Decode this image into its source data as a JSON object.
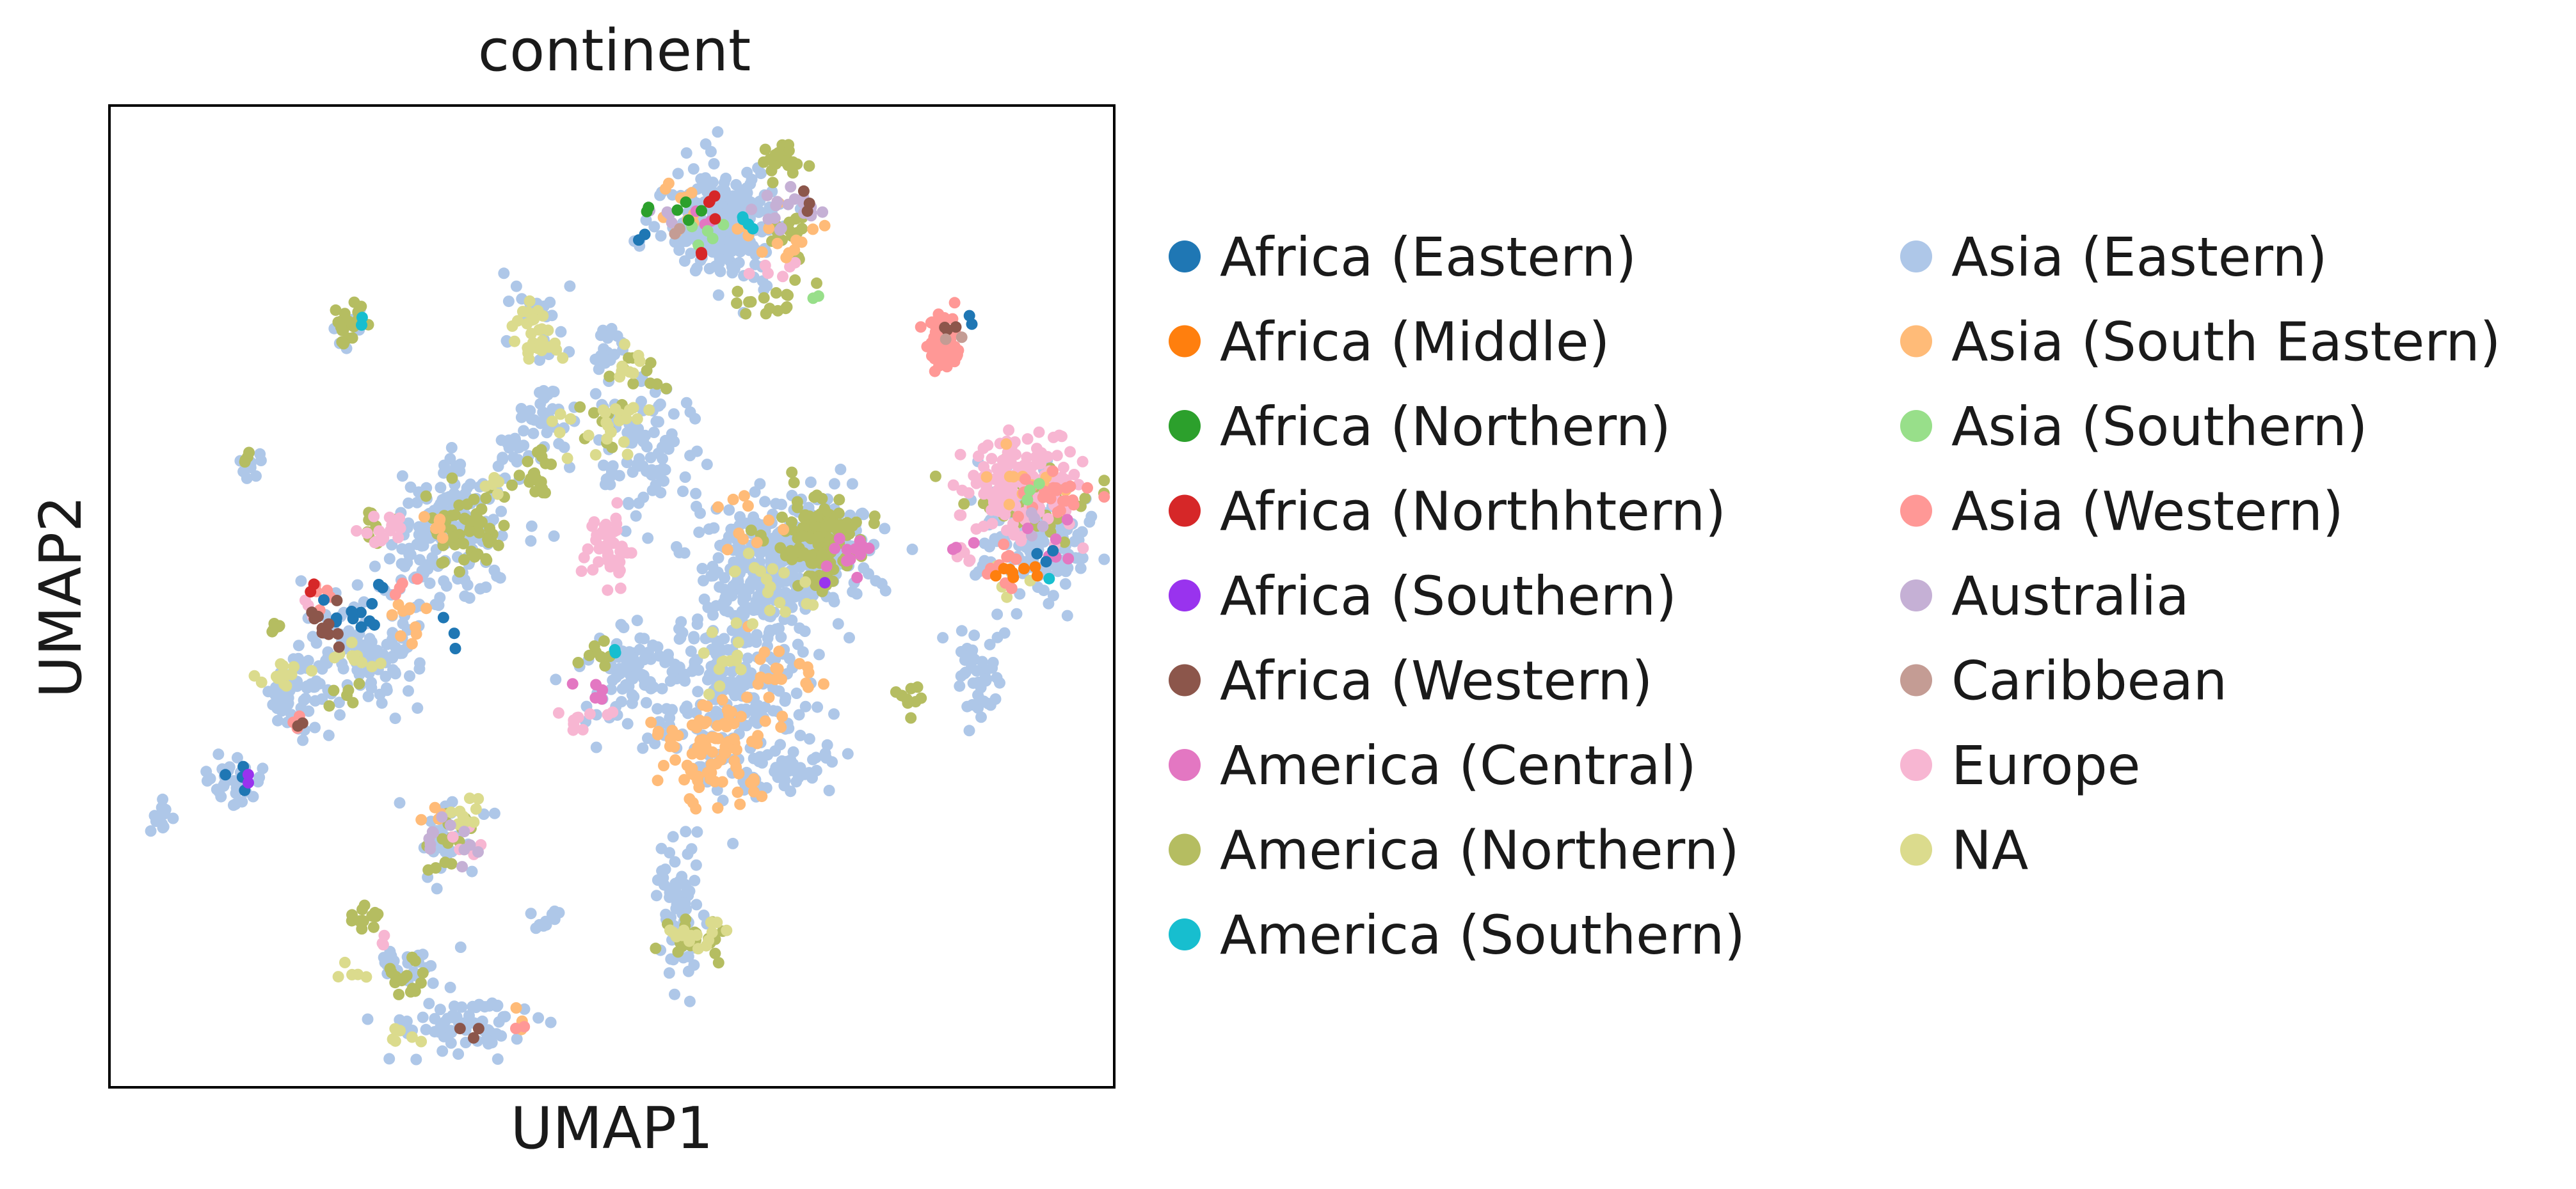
{
  "chart_data": {
    "type": "scatter",
    "title": "continent",
    "xlabel": "UMAP1",
    "ylabel": "UMAP2",
    "xlim": [
      0,
      100
    ],
    "ylim": [
      0,
      100
    ],
    "grid": false,
    "axis_ticks": false,
    "legend_placement": "right, two columns",
    "series": [
      {
        "name": "Africa (Eastern)",
        "color": "#1f77b4",
        "clusters": [
          {
            "x": 25,
            "y": 49,
            "sx": 1.8,
            "sy": 1.5,
            "n": 12
          },
          {
            "x": 13.5,
            "y": 31.5,
            "sx": 0.9,
            "sy": 0.8,
            "n": 4
          },
          {
            "x": 85.5,
            "y": 78.5,
            "sx": 0.5,
            "sy": 0.5,
            "n": 2
          },
          {
            "x": 93.5,
            "y": 54,
            "sx": 0.6,
            "sy": 0.6,
            "n": 3
          },
          {
            "x": 53.5,
            "y": 87,
            "sx": 0.6,
            "sy": 0.6,
            "n": 2
          },
          {
            "x": 34,
            "y": 46.5,
            "sx": 0.8,
            "sy": 0.8,
            "n": 3
          }
        ]
      },
      {
        "name": "Africa (Middle)",
        "color": "#ff7f0e",
        "clusters": [
          {
            "x": 89.5,
            "y": 53,
            "sx": 0.7,
            "sy": 0.6,
            "n": 6
          },
          {
            "x": 92,
            "y": 52.5,
            "sx": 0.4,
            "sy": 0.4,
            "n": 2
          }
        ]
      },
      {
        "name": "Africa (Northern)",
        "color": "#2ca02c",
        "clusters": [
          {
            "x": 57.5,
            "y": 89,
            "sx": 0.8,
            "sy": 0.8,
            "n": 4
          },
          {
            "x": 54,
            "y": 89.5,
            "sx": 0.4,
            "sy": 0.4,
            "n": 2
          }
        ]
      },
      {
        "name": "Africa (Northhtern)",
        "color": "#d62728",
        "clusters": [
          {
            "x": 59.5,
            "y": 89.5,
            "sx": 1,
            "sy": 1,
            "n": 4
          },
          {
            "x": 58.5,
            "y": 84.5,
            "sx": 0.5,
            "sy": 0.5,
            "n": 2
          },
          {
            "x": 20,
            "y": 50.5,
            "sx": 0.6,
            "sy": 0.6,
            "n": 2
          }
        ]
      },
      {
        "name": "Africa (Southern)",
        "color": "#9933ee",
        "clusters": [
          {
            "x": 13.5,
            "y": 31,
            "sx": 0.5,
            "sy": 0.5,
            "n": 2
          },
          {
            "x": 71,
            "y": 52,
            "sx": 0.5,
            "sy": 0.5,
            "n": 1
          }
        ]
      },
      {
        "name": "Africa (Western)",
        "color": "#8c564b",
        "clusters": [
          {
            "x": 21.5,
            "y": 47,
            "sx": 1,
            "sy": 1,
            "n": 10
          },
          {
            "x": 69.5,
            "y": 90.5,
            "sx": 0.8,
            "sy": 0.8,
            "n": 3
          },
          {
            "x": 36,
            "y": 6,
            "sx": 1,
            "sy": 0.5,
            "n": 3
          },
          {
            "x": 19,
            "y": 37,
            "sx": 0.5,
            "sy": 0.5,
            "n": 2
          },
          {
            "x": 84,
            "y": 77.5,
            "sx": 0.8,
            "sy": 0.8,
            "n": 3
          }
        ]
      },
      {
        "name": "America (Central)",
        "color": "#e377c2",
        "clusters": [
          {
            "x": 73,
            "y": 55,
            "sx": 1.5,
            "sy": 1.5,
            "n": 12
          },
          {
            "x": 95,
            "y": 56,
            "sx": 1.5,
            "sy": 1.5,
            "n": 6
          },
          {
            "x": 48,
            "y": 40,
            "sx": 1,
            "sy": 0.8,
            "n": 5
          },
          {
            "x": 58.5,
            "y": 88.5,
            "sx": 0.8,
            "sy": 0.8,
            "n": 3
          },
          {
            "x": 84.5,
            "y": 55.5,
            "sx": 0.8,
            "sy": 0.8,
            "n": 3
          }
        ]
      },
      {
        "name": "America (Northern)",
        "color": "#b5bd61",
        "clusters": [
          {
            "x": 70.5,
            "y": 56,
            "sx": 2.3,
            "sy": 2.2,
            "n": 120
          },
          {
            "x": 66.5,
            "y": 94.5,
            "sx": 1,
            "sy": 0.9,
            "n": 22
          },
          {
            "x": 68,
            "y": 87.5,
            "sx": 1.5,
            "sy": 1.5,
            "n": 18
          },
          {
            "x": 66,
            "y": 80.5,
            "sx": 2,
            "sy": 1,
            "n": 16
          },
          {
            "x": 23.5,
            "y": 77.5,
            "sx": 0.9,
            "sy": 1.2,
            "n": 22
          },
          {
            "x": 35.5,
            "y": 57,
            "sx": 2,
            "sy": 2,
            "n": 60
          },
          {
            "x": 42.5,
            "y": 62,
            "sx": 0.8,
            "sy": 1.6,
            "n": 20
          },
          {
            "x": 92,
            "y": 59,
            "sx": 3,
            "sy": 2,
            "n": 40
          },
          {
            "x": 79.5,
            "y": 40,
            "sx": 1.2,
            "sy": 1,
            "n": 10
          },
          {
            "x": 58,
            "y": 15,
            "sx": 1.5,
            "sy": 1.5,
            "n": 22
          },
          {
            "x": 29.5,
            "y": 11.5,
            "sx": 0.8,
            "sy": 1,
            "n": 16
          },
          {
            "x": 25.5,
            "y": 17,
            "sx": 0.8,
            "sy": 1,
            "n": 14
          },
          {
            "x": 33.5,
            "y": 25,
            "sx": 1,
            "sy": 1.5,
            "n": 14
          },
          {
            "x": 16.5,
            "y": 46.5,
            "sx": 0.5,
            "sy": 0.5,
            "n": 6
          },
          {
            "x": 26.5,
            "y": 58,
            "sx": 0.8,
            "sy": 0.8,
            "n": 8
          },
          {
            "x": 52.5,
            "y": 72.5,
            "sx": 1.2,
            "sy": 1,
            "n": 10
          },
          {
            "x": 48.5,
            "y": 67.5,
            "sx": 1.5,
            "sy": 1.2,
            "n": 10
          },
          {
            "x": 48.5,
            "y": 44,
            "sx": 1,
            "sy": 0.8,
            "n": 8
          },
          {
            "x": 24,
            "y": 40,
            "sx": 1,
            "sy": 1,
            "n": 6
          },
          {
            "x": 14,
            "y": 64.5,
            "sx": 0.6,
            "sy": 0.6,
            "n": 4
          }
        ]
      },
      {
        "name": "America (Southern)",
        "color": "#17becf",
        "clusters": [
          {
            "x": 63.5,
            "y": 87.5,
            "sx": 0.6,
            "sy": 0.6,
            "n": 4
          },
          {
            "x": 25.5,
            "y": 78,
            "sx": 0.4,
            "sy": 0.4,
            "n": 2
          },
          {
            "x": 50.5,
            "y": 44.5,
            "sx": 0.4,
            "sy": 0.4,
            "n": 2
          },
          {
            "x": 93.5,
            "y": 51,
            "sx": 0.4,
            "sy": 0.4,
            "n": 1
          }
        ]
      },
      {
        "name": "Asia (Eastern)",
        "color": "#aec7e8",
        "clusters": [
          {
            "x": 60.5,
            "y": 88,
            "sx": 3,
            "sy": 3,
            "n": 260
          },
          {
            "x": 65.5,
            "y": 52.5,
            "sx": 3.5,
            "sy": 3.5,
            "n": 260
          },
          {
            "x": 62,
            "y": 40,
            "sx": 3.2,
            "sy": 4.5,
            "n": 220
          },
          {
            "x": 71,
            "y": 55,
            "sx": 2.5,
            "sy": 3,
            "n": 140
          },
          {
            "x": 34.5,
            "y": 57.5,
            "sx": 3,
            "sy": 3,
            "n": 140
          },
          {
            "x": 52,
            "y": 41.5,
            "sx": 2.5,
            "sy": 3,
            "n": 80
          },
          {
            "x": 25.5,
            "y": 45,
            "sx": 3,
            "sy": 3,
            "n": 100
          },
          {
            "x": 19,
            "y": 40,
            "sx": 2,
            "sy": 2,
            "n": 50
          },
          {
            "x": 12.5,
            "y": 31,
            "sx": 1.5,
            "sy": 1.2,
            "n": 35
          },
          {
            "x": 5,
            "y": 27.5,
            "sx": 0.8,
            "sy": 0.8,
            "n": 15
          },
          {
            "x": 92,
            "y": 56,
            "sx": 2.5,
            "sy": 3,
            "n": 130
          },
          {
            "x": 86.5,
            "y": 42,
            "sx": 1.2,
            "sy": 2.5,
            "n": 45
          },
          {
            "x": 53,
            "y": 65,
            "sx": 3,
            "sy": 3.5,
            "n": 100
          },
          {
            "x": 43,
            "y": 69,
            "sx": 1.2,
            "sy": 1.5,
            "n": 25
          },
          {
            "x": 42,
            "y": 78,
            "sx": 1.5,
            "sy": 2,
            "n": 25
          },
          {
            "x": 57,
            "y": 19.5,
            "sx": 1.2,
            "sy": 4,
            "n": 60
          },
          {
            "x": 34.5,
            "y": 6,
            "sx": 3.5,
            "sy": 1.5,
            "n": 70
          },
          {
            "x": 29.5,
            "y": 12.5,
            "sx": 2,
            "sy": 1,
            "n": 25
          },
          {
            "x": 34,
            "y": 25.5,
            "sx": 2,
            "sy": 2,
            "n": 30
          },
          {
            "x": 43.5,
            "y": 17,
            "sx": 0.8,
            "sy": 0.6,
            "n": 10
          },
          {
            "x": 14,
            "y": 63.5,
            "sx": 0.8,
            "sy": 0.8,
            "n": 10
          },
          {
            "x": 68.5,
            "y": 32.5,
            "sx": 2,
            "sy": 1.5,
            "n": 40
          },
          {
            "x": 31,
            "y": 52.5,
            "sx": 2.5,
            "sy": 2,
            "n": 40
          },
          {
            "x": 41,
            "y": 65,
            "sx": 1.5,
            "sy": 1.5,
            "n": 20
          },
          {
            "x": 49.5,
            "y": 75,
            "sx": 1,
            "sy": 1.2,
            "n": 15
          },
          {
            "x": 23.5,
            "y": 77.5,
            "sx": 0.8,
            "sy": 1,
            "n": 8
          }
        ]
      },
      {
        "name": "Asia (South Eastern)",
        "color": "#ffbb78",
        "clusters": [
          {
            "x": 60.5,
            "y": 34.5,
            "sx": 3,
            "sy": 2.5,
            "n": 90
          },
          {
            "x": 66,
            "y": 43,
            "sx": 1.5,
            "sy": 1.5,
            "n": 12
          },
          {
            "x": 63.5,
            "y": 58,
            "sx": 1.5,
            "sy": 1.5,
            "n": 10
          },
          {
            "x": 91,
            "y": 62,
            "sx": 2.5,
            "sy": 1.5,
            "n": 12
          },
          {
            "x": 30,
            "y": 47.5,
            "sx": 1,
            "sy": 1.5,
            "n": 10
          },
          {
            "x": 66.5,
            "y": 86.5,
            "sx": 2,
            "sy": 1.5,
            "n": 14
          },
          {
            "x": 56.5,
            "y": 90,
            "sx": 1.5,
            "sy": 1.5,
            "n": 10
          },
          {
            "x": 33,
            "y": 57.5,
            "sx": 1,
            "sy": 1,
            "n": 6
          },
          {
            "x": 33,
            "y": 27.5,
            "sx": 0.8,
            "sy": 0.8,
            "n": 5
          },
          {
            "x": 40.5,
            "y": 6.5,
            "sx": 0.5,
            "sy": 0.5,
            "n": 3
          },
          {
            "x": 69.5,
            "y": 42,
            "sx": 1,
            "sy": 1,
            "n": 6
          }
        ]
      },
      {
        "name": "Asia (Southern)",
        "color": "#98df8a",
        "clusters": [
          {
            "x": 60,
            "y": 87,
            "sx": 1,
            "sy": 1,
            "n": 5
          },
          {
            "x": 69.5,
            "y": 80.5,
            "sx": 0.5,
            "sy": 0.5,
            "n": 2
          },
          {
            "x": 91,
            "y": 60,
            "sx": 0.8,
            "sy": 0.8,
            "n": 3
          }
        ]
      },
      {
        "name": "Asia (Western)",
        "color": "#ff9896",
        "clusters": [
          {
            "x": 83,
            "y": 76,
            "sx": 0.9,
            "sy": 1.3,
            "n": 80
          },
          {
            "x": 93,
            "y": 60,
            "sx": 2.5,
            "sy": 1.5,
            "n": 25
          },
          {
            "x": 88.5,
            "y": 53,
            "sx": 1,
            "sy": 1,
            "n": 10
          },
          {
            "x": 20.5,
            "y": 50,
            "sx": 0.6,
            "sy": 0.8,
            "n": 6
          },
          {
            "x": 29.5,
            "y": 51,
            "sx": 0.6,
            "sy": 0.6,
            "n": 4
          },
          {
            "x": 18.5,
            "y": 37.5,
            "sx": 0.5,
            "sy": 0.5,
            "n": 3
          },
          {
            "x": 40.5,
            "y": 5.5,
            "sx": 0.5,
            "sy": 0.5,
            "n": 2
          }
        ]
      },
      {
        "name": "Australia",
        "color": "#c5b0d5",
        "clusters": [
          {
            "x": 67.5,
            "y": 89.5,
            "sx": 2,
            "sy": 1,
            "n": 18
          },
          {
            "x": 35,
            "y": 25.5,
            "sx": 1.5,
            "sy": 1,
            "n": 12
          },
          {
            "x": 56.5,
            "y": 88.5,
            "sx": 0.8,
            "sy": 0.8,
            "n": 4
          },
          {
            "x": 92.5,
            "y": 57,
            "sx": 1,
            "sy": 1,
            "n": 4
          }
        ]
      },
      {
        "name": "Caribbean",
        "color": "#c49c94",
        "clusters": [
          {
            "x": 56.5,
            "y": 87.5,
            "sx": 0.5,
            "sy": 0.5,
            "n": 2
          },
          {
            "x": 84,
            "y": 76,
            "sx": 0.5,
            "sy": 0.5,
            "n": 2
          }
        ]
      },
      {
        "name": "Europe",
        "color": "#f7b6d2",
        "clusters": [
          {
            "x": 90.5,
            "y": 61.5,
            "sx": 3,
            "sy": 2.5,
            "n": 150
          },
          {
            "x": 49.5,
            "y": 55,
            "sx": 1.2,
            "sy": 1.8,
            "n": 45
          },
          {
            "x": 27,
            "y": 56.5,
            "sx": 1.2,
            "sy": 0.8,
            "n": 14
          },
          {
            "x": 48,
            "y": 37.5,
            "sx": 1.5,
            "sy": 1,
            "n": 10
          },
          {
            "x": 66.5,
            "y": 83.5,
            "sx": 1.2,
            "sy": 0.8,
            "n": 6
          },
          {
            "x": 85.5,
            "y": 54.5,
            "sx": 0.8,
            "sy": 1,
            "n": 6
          },
          {
            "x": 20,
            "y": 49,
            "sx": 0.6,
            "sy": 0.6,
            "n": 3
          },
          {
            "x": 27,
            "y": 15,
            "sx": 0.5,
            "sy": 0.5,
            "n": 3
          },
          {
            "x": 35.5,
            "y": 25,
            "sx": 0.8,
            "sy": 0.8,
            "n": 5
          }
        ]
      },
      {
        "name": "NA",
        "color": "#dbdb8d",
        "clusters": [
          {
            "x": 42,
            "y": 76.5,
            "sx": 1.2,
            "sy": 1.5,
            "n": 28
          },
          {
            "x": 50.5,
            "y": 68,
            "sx": 1.5,
            "sy": 1.5,
            "n": 18
          },
          {
            "x": 58.5,
            "y": 15.5,
            "sx": 1.5,
            "sy": 1,
            "n": 15
          },
          {
            "x": 35,
            "y": 28,
            "sx": 0.8,
            "sy": 1,
            "n": 10
          },
          {
            "x": 18.5,
            "y": 42,
            "sx": 1.5,
            "sy": 1,
            "n": 14
          },
          {
            "x": 24.5,
            "y": 43.5,
            "sx": 1.2,
            "sy": 1,
            "n": 10
          },
          {
            "x": 66,
            "y": 50.5,
            "sx": 2,
            "sy": 2,
            "n": 18
          },
          {
            "x": 62,
            "y": 43,
            "sx": 2,
            "sy": 2,
            "n": 12
          },
          {
            "x": 38,
            "y": 61.5,
            "sx": 1,
            "sy": 1,
            "n": 6
          },
          {
            "x": 52,
            "y": 73.5,
            "sx": 0.8,
            "sy": 0.8,
            "n": 8
          },
          {
            "x": 29,
            "y": 5,
            "sx": 1,
            "sy": 0.5,
            "n": 6
          },
          {
            "x": 24,
            "y": 11.5,
            "sx": 0.8,
            "sy": 0.5,
            "n": 5
          },
          {
            "x": 89.5,
            "y": 51.5,
            "sx": 1,
            "sy": 1,
            "n": 6
          },
          {
            "x": 46,
            "y": 66,
            "sx": 1,
            "sy": 1,
            "n": 5
          }
        ]
      }
    ]
  }
}
